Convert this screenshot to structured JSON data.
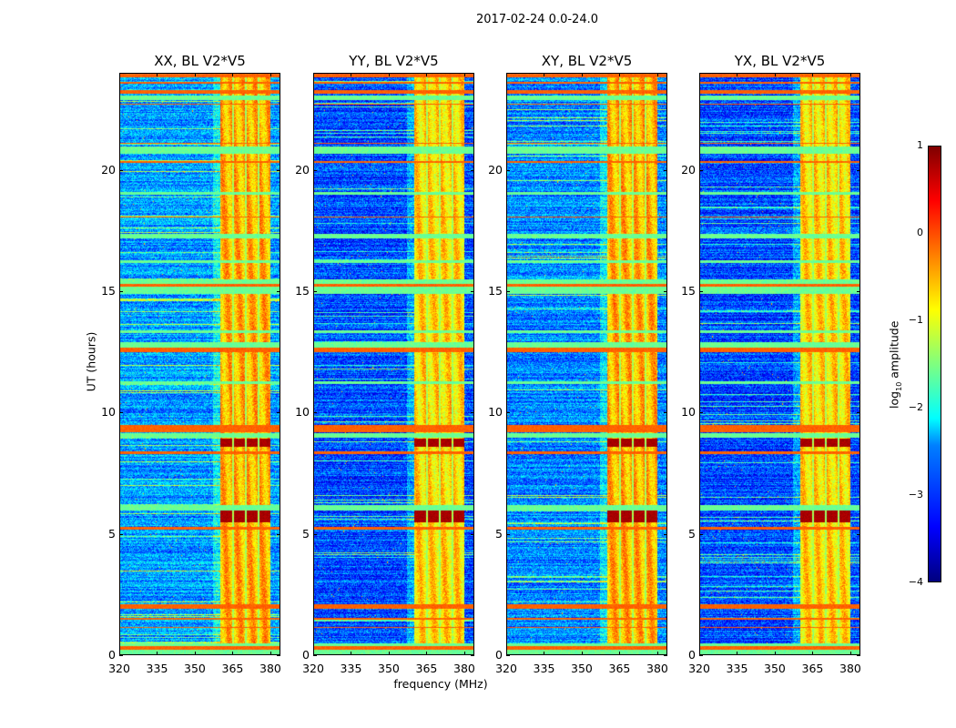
{
  "suptitle": "2017-02-24 0.0-24.0",
  "chart_data": {
    "type": "heatmap",
    "title": "2017-02-24 0.0-24.0",
    "xlabel": "frequency (MHz)",
    "ylabel": "UT (hours)",
    "xlim": [
      320,
      384
    ],
    "ylim": [
      0,
      24
    ],
    "xticks": [
      "320",
      "335",
      "350",
      "365",
      "380"
    ],
    "yticks": [
      "0",
      "5",
      "10",
      "15",
      "20"
    ],
    "panels": [
      {
        "title": "XX, BL V2*V5",
        "background_log_amp": -2.6
      },
      {
        "title": "YY, BL V2*V5",
        "background_log_amp": -3.0
      },
      {
        "title": "XY, BL V2*V5",
        "background_log_amp": -2.7
      },
      {
        "title": "YX, BL V2*V5",
        "background_log_amp": -3.0
      }
    ],
    "rfi_band_mhz": [
      360,
      380
    ],
    "rfi_band_log_amp": -0.5,
    "strong_rfi_hours": [
      [
        5.5,
        6.0
      ],
      [
        8.6,
        8.95
      ]
    ],
    "colorbar": {
      "label": "log10 amplitude",
      "label_main": "log",
      "label_sub": "10",
      "label_rest": " amplitude",
      "range": [
        -4,
        1
      ],
      "ticks": [
        "1",
        "0",
        "−1",
        "−2",
        "−3",
        "−4"
      ],
      "colormap": "jet"
    }
  }
}
